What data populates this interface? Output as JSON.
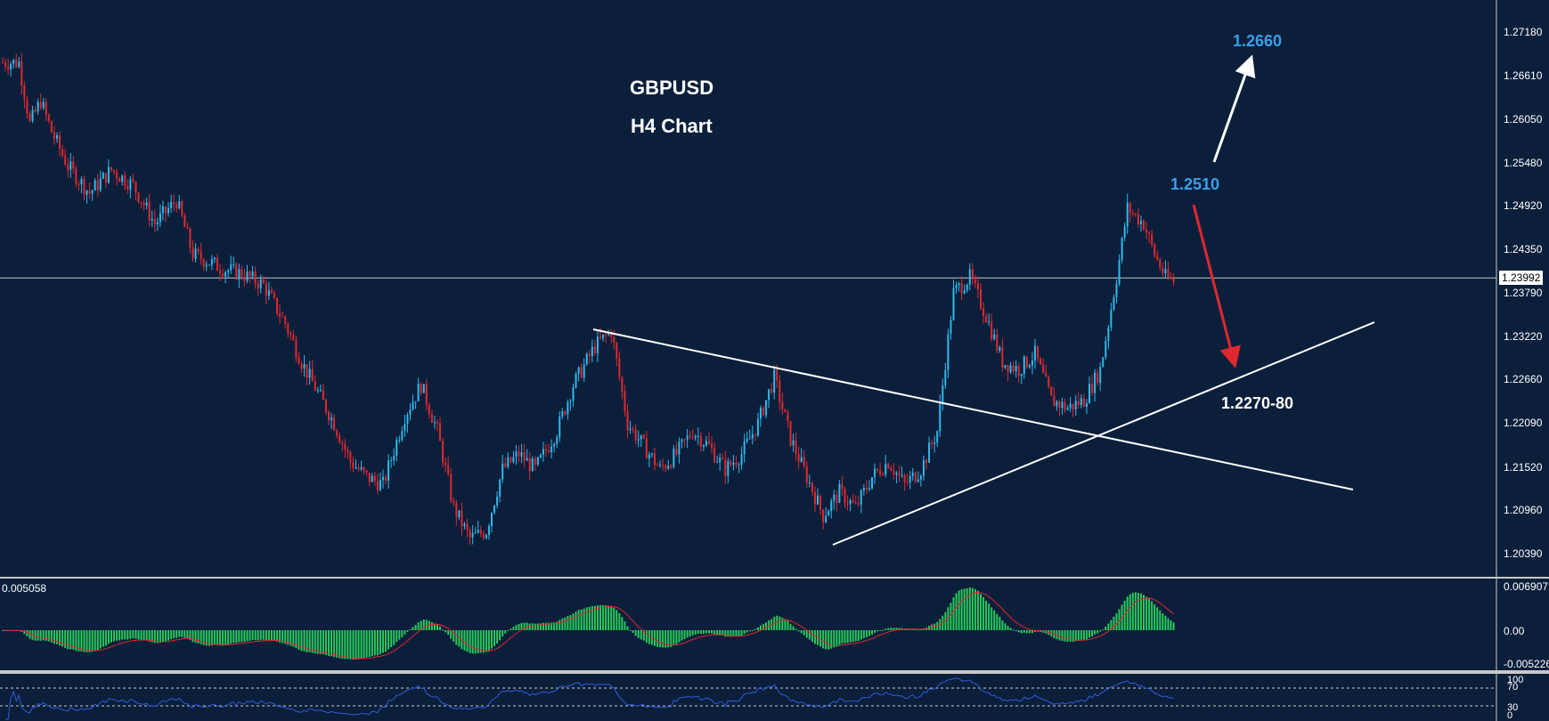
{
  "header": {
    "symbol": "GBPUSD",
    "timeframe": "H4 Chart"
  },
  "annotations": {
    "target_up": "1.2660",
    "resistance": "1.2510",
    "support_zone": "1.2270-80"
  },
  "colors": {
    "background": "#0b1f3b",
    "bull_candle": "#2fb8ea",
    "bear_candle": "#e0282e",
    "target_label": "#3a9fe8",
    "macd_hist": "#28c85a",
    "macd_signal": "#e0282e",
    "rsi_line": "#2f5bd8"
  },
  "current_price_label": "1.23992",
  "macd_panel": {
    "value_label": "0.005058",
    "ticks": [
      "0.006907",
      "0.00",
      "-0.005226"
    ]
  },
  "rsi_panel": {
    "ticks": [
      "100",
      "70",
      "30",
      "0"
    ]
  },
  "chart_data": {
    "type": "candlestick",
    "ylim": [
      1.201,
      1.2752
    ],
    "yticks": [
      "1.27180",
      "1.26610",
      "1.26050",
      "1.25480",
      "1.24920",
      "1.24350",
      "1.23790",
      "1.23220",
      "1.22660",
      "1.22090",
      "1.21520",
      "1.20960",
      "1.20390"
    ],
    "current_price": 1.23992,
    "price_path": [
      [
        0,
        1.268
      ],
      [
        6,
        1.268
      ],
      [
        10,
        1.26
      ],
      [
        14,
        1.263
      ],
      [
        18,
        1.259
      ],
      [
        24,
        1.2545
      ],
      [
        32,
        1.251
      ],
      [
        40,
        1.254
      ],
      [
        48,
        1.252
      ],
      [
        56,
        1.247
      ],
      [
        64,
        1.25
      ],
      [
        70,
        1.243
      ],
      [
        76,
        1.242
      ],
      [
        82,
        1.241
      ],
      [
        88,
        1.2405
      ],
      [
        96,
        1.239
      ],
      [
        104,
        1.234
      ],
      [
        110,
        1.229
      ],
      [
        116,
        1.225
      ],
      [
        122,
        1.221
      ],
      [
        128,
        1.216
      ],
      [
        134,
        1.214
      ],
      [
        140,
        1.213
      ],
      [
        148,
        1.222
      ],
      [
        154,
        1.226
      ],
      [
        160,
        1.22
      ],
      [
        166,
        1.21
      ],
      [
        172,
        1.206
      ],
      [
        178,
        1.207
      ],
      [
        184,
        1.215
      ],
      [
        190,
        1.217
      ],
      [
        196,
        1.215
      ],
      [
        204,
        1.22
      ],
      [
        210,
        1.226
      ],
      [
        218,
        1.231
      ],
      [
        224,
        1.233
      ],
      [
        230,
        1.221
      ],
      [
        236,
        1.218
      ],
      [
        242,
        1.215
      ],
      [
        248,
        1.217
      ],
      [
        254,
        1.22
      ],
      [
        260,
        1.218
      ],
      [
        266,
        1.215
      ],
      [
        272,
        1.217
      ],
      [
        278,
        1.221
      ],
      [
        284,
        1.227
      ],
      [
        290,
        1.219
      ],
      [
        296,
        1.214
      ],
      [
        302,
        1.209
      ],
      [
        308,
        1.212
      ],
      [
        314,
        1.21
      ],
      [
        320,
        1.214
      ],
      [
        326,
        1.216
      ],
      [
        332,
        1.213
      ],
      [
        338,
        1.215
      ],
      [
        344,
        1.22
      ],
      [
        350,
        1.238
      ],
      [
        356,
        1.24
      ],
      [
        362,
        1.235
      ],
      [
        368,
        1.229
      ],
      [
        374,
        1.228
      ],
      [
        380,
        1.23
      ],
      [
        386,
        1.224
      ],
      [
        392,
        1.223
      ],
      [
        398,
        1.224
      ],
      [
        404,
        1.228
      ],
      [
        410,
        1.24
      ],
      [
        414,
        1.249
      ],
      [
        420,
        1.247
      ],
      [
        424,
        1.243
      ],
      [
        428,
        1.24
      ],
      [
        431,
        1.2395
      ]
    ],
    "indicators": [
      {
        "name": "MACD",
        "type": "histogram_with_signal"
      },
      {
        "name": "RSI",
        "type": "line",
        "levels": [
          70,
          30
        ]
      }
    ]
  }
}
